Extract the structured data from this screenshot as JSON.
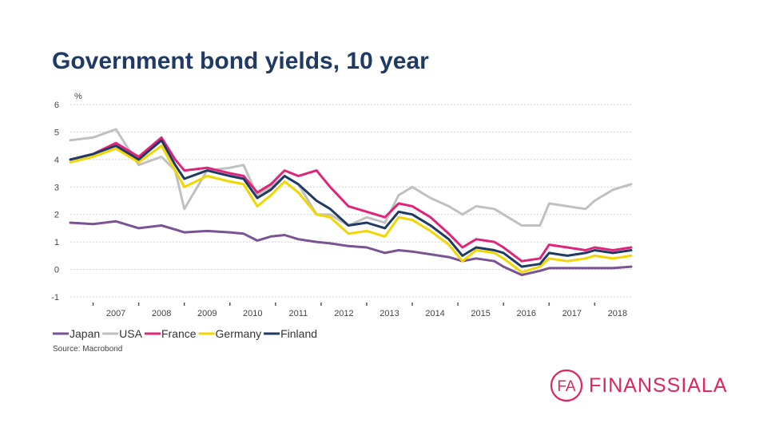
{
  "slide": {
    "title": "Government bond yields, 10 year",
    "source": "Source: Macrobond"
  },
  "logo": {
    "mark_text": "FA",
    "name": "FINANSSIALA",
    "color": "#e0245e"
  },
  "chart_data": {
    "type": "line",
    "title": "Government bond yields, 10 year",
    "ylabel": "%",
    "xlabel": "",
    "xlim": [
      2006.5,
      2018.8
    ],
    "ylim": [
      -1,
      6
    ],
    "yticks": [
      -1,
      0,
      1,
      2,
      3,
      4,
      5,
      6
    ],
    "xtick_labels": [
      "2007",
      "2008",
      "2009",
      "2010",
      "2011",
      "2012",
      "2013",
      "2014",
      "2015",
      "2016",
      "2017",
      "2018"
    ],
    "grid": true,
    "legend_position": "bottom-left",
    "x": [
      2006.5,
      2007.0,
      2007.5,
      2008.0,
      2008.5,
      2008.8,
      2009.0,
      2009.5,
      2010.0,
      2010.3,
      2010.6,
      2010.9,
      2011.2,
      2011.5,
      2011.9,
      2012.2,
      2012.6,
      2013.0,
      2013.4,
      2013.7,
      2014.0,
      2014.4,
      2014.8,
      2015.1,
      2015.4,
      2015.8,
      2016.0,
      2016.4,
      2016.8,
      2017.0,
      2017.4,
      2017.8,
      2018.0,
      2018.4,
      2018.8
    ],
    "series": [
      {
        "name": "Japan",
        "color": "#7a5394",
        "values": [
          1.7,
          1.65,
          1.75,
          1.5,
          1.6,
          1.45,
          1.35,
          1.4,
          1.35,
          1.3,
          1.05,
          1.2,
          1.25,
          1.1,
          1.0,
          0.95,
          0.85,
          0.8,
          0.6,
          0.7,
          0.65,
          0.55,
          0.45,
          0.3,
          0.4,
          0.3,
          0.1,
          -0.2,
          -0.05,
          0.05,
          0.05,
          0.05,
          0.05,
          0.05,
          0.1
        ]
      },
      {
        "name": "USA",
        "color": "#c0c0c0",
        "values": [
          4.7,
          4.8,
          5.1,
          3.8,
          4.1,
          3.6,
          2.2,
          3.6,
          3.7,
          3.8,
          2.7,
          3.0,
          3.4,
          3.1,
          2.0,
          2.0,
          1.6,
          1.9,
          1.7,
          2.7,
          3.0,
          2.6,
          2.3,
          2.0,
          2.3,
          2.2,
          2.0,
          1.6,
          1.6,
          2.4,
          2.3,
          2.2,
          2.5,
          2.9,
          3.1
        ]
      },
      {
        "name": "France",
        "color": "#e0247a",
        "values": [
          4.0,
          4.2,
          4.6,
          4.1,
          4.8,
          4.0,
          3.6,
          3.7,
          3.5,
          3.4,
          2.8,
          3.1,
          3.6,
          3.4,
          3.6,
          3.0,
          2.3,
          2.1,
          1.9,
          2.4,
          2.3,
          1.9,
          1.3,
          0.8,
          1.1,
          1.0,
          0.8,
          0.3,
          0.4,
          0.9,
          0.8,
          0.7,
          0.8,
          0.7,
          0.8
        ]
      },
      {
        "name": "Germany",
        "color": "#f2d600",
        "values": [
          3.9,
          4.1,
          4.4,
          3.9,
          4.5,
          3.6,
          3.0,
          3.4,
          3.2,
          3.1,
          2.3,
          2.7,
          3.2,
          2.8,
          2.0,
          1.9,
          1.3,
          1.4,
          1.2,
          1.9,
          1.8,
          1.4,
          0.9,
          0.3,
          0.7,
          0.6,
          0.4,
          -0.1,
          0.1,
          0.4,
          0.3,
          0.4,
          0.5,
          0.4,
          0.5
        ]
      },
      {
        "name": "Finland",
        "color": "#1f3a64",
        "values": [
          4.0,
          4.2,
          4.5,
          4.0,
          4.7,
          3.8,
          3.3,
          3.6,
          3.4,
          3.3,
          2.6,
          2.9,
          3.4,
          3.1,
          2.5,
          2.2,
          1.6,
          1.7,
          1.5,
          2.1,
          2.0,
          1.6,
          1.1,
          0.5,
          0.8,
          0.7,
          0.6,
          0.1,
          0.2,
          0.6,
          0.5,
          0.6,
          0.7,
          0.6,
          0.7
        ]
      }
    ]
  }
}
